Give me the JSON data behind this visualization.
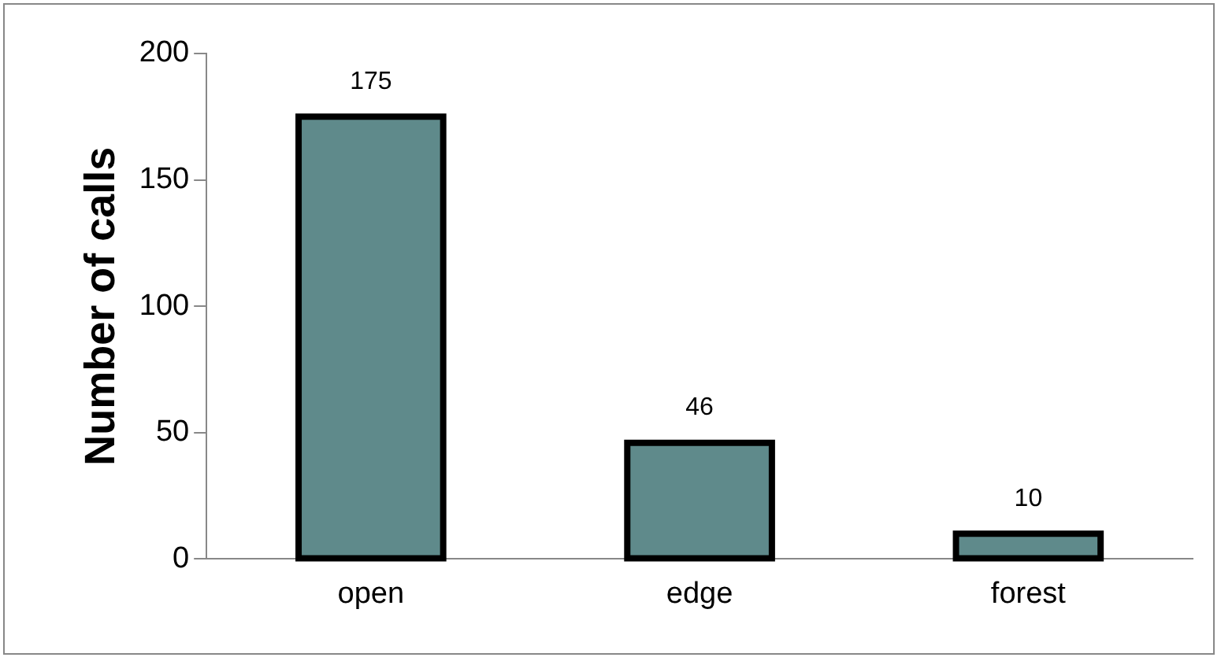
{
  "chart_data": {
    "type": "bar",
    "ylabel": "Number of calls",
    "categories": [
      "open",
      "edge",
      "forest"
    ],
    "values": [
      175,
      46,
      10
    ],
    "color": "#5f8a8b",
    "ylim": [
      0,
      200
    ],
    "yticks": [
      0,
      50,
      100,
      150,
      200
    ],
    "grid": false,
    "data_labels": true,
    "legend": false
  }
}
